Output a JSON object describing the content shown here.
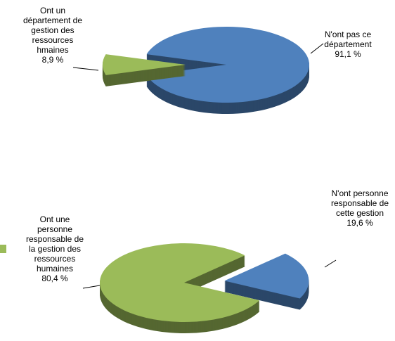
{
  "chart_data": [
    {
      "type": "pie",
      "categories": [
        "Ont un département de gestion des ressources hmaines",
        "N'ont pas ce département"
      ],
      "values": [
        8.9,
        91.1
      ],
      "value_labels": [
        "8,9 %",
        "91,1 %"
      ],
      "colors": [
        "#9bbb59",
        "#4f81bd"
      ]
    },
    {
      "type": "pie",
      "categories": [
        "Ont une personne responsable de la gestion des ressources humaines",
        "N'ont personne responsable de cette gestion"
      ],
      "values": [
        80.4,
        19.6
      ],
      "value_labels": [
        "80,4 %",
        "19,6 %"
      ],
      "colors": [
        "#9bbb59",
        "#4f81bd"
      ]
    }
  ]
}
